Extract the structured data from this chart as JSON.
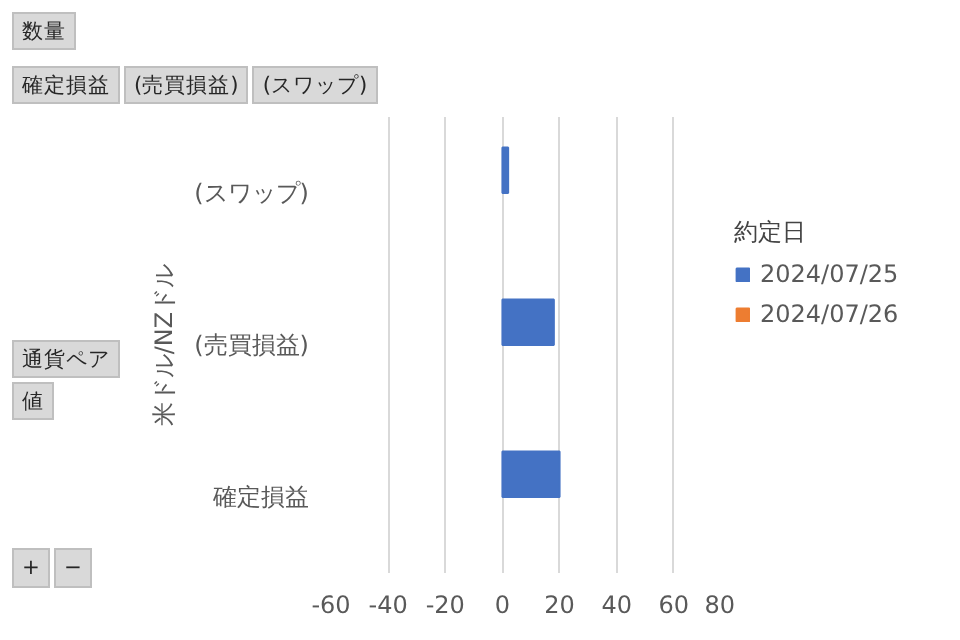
{
  "chart_data": {
    "type": "bar",
    "orientation": "horizontal",
    "ylabel": "米ドル/NZドル",
    "legend_title": "約定日",
    "categories": [
      "(スワップ)",
      "(売買損益)",
      "確定損益"
    ],
    "series": [
      {
        "name": "2024/07/25",
        "color": "#4472c4",
        "values": [
          2,
          18,
          20
        ]
      },
      {
        "name": "2024/07/26",
        "color": "#ed7d31",
        "values": [
          null,
          null,
          null
        ]
      }
    ],
    "xlim": [
      -60,
      80
    ],
    "xticks": [
      -60,
      -40,
      -20,
      0,
      20,
      40,
      60,
      80
    ],
    "grid": "x",
    "legend": "right",
    "annotations": [
      "数量",
      "確定損益",
      "(売買損益)",
      "(スワップ)",
      "通貨ペア",
      "値",
      "+",
      "−"
    ]
  }
}
